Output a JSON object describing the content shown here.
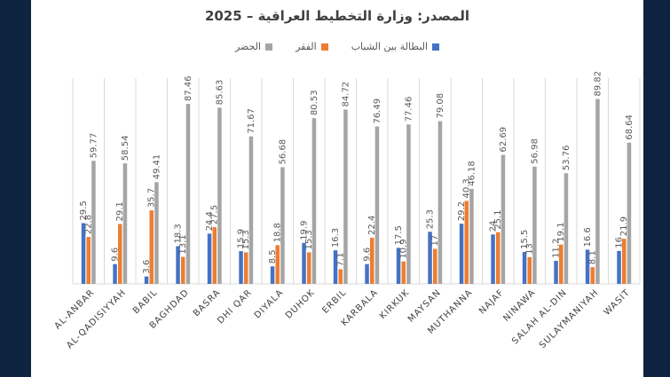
{
  "chart_data": {
    "type": "bar",
    "title": "المصدر: وزارة التخطيط العراقية – 2025",
    "categories": [
      "AL-ANBAR",
      "AL-QADISIYYAH",
      "BABIL",
      "BAGHDAD",
      "BASRA",
      "DHI QAR",
      "DIYALA",
      "DUHOK",
      "ERBIL",
      "KARBALA",
      "KIRKUK",
      "MAYSAN",
      "MUTHANNA",
      "NAJAF",
      "NINAWA",
      "SALAH AL-DIN",
      "SULAYMANIYAH",
      "WASIT"
    ],
    "series": [
      {
        "name": "البطالة بين الشباب",
        "color": "#4472c4",
        "values": [
          29.5,
          9.6,
          3.6,
          18.3,
          24.4,
          15.9,
          8.5,
          19.9,
          16.3,
          9.6,
          17.5,
          25.3,
          29.2,
          24,
          15.5,
          11.2,
          16.6,
          16
        ]
      },
      {
        "name": "الفقر",
        "color": "#ed7d31",
        "values": [
          22.8,
          29.1,
          35.7,
          13.1,
          27.5,
          15.3,
          18.8,
          15.3,
          7.1,
          22.4,
          10.9,
          17,
          40.3,
          25.1,
          13,
          19.1,
          8.1,
          21.9
        ]
      },
      {
        "name": "الحضر",
        "color": "#a5a5a5",
        "values": [
          59.77,
          58.54,
          49.41,
          87.46,
          85.63,
          71.67,
          56.68,
          80.53,
          84.72,
          76.49,
          77.46,
          79.08,
          46.18,
          62.69,
          56.98,
          53.76,
          89.82,
          68.64
        ]
      }
    ],
    "ylim": [
      0,
      100
    ],
    "grid": "vertical",
    "legend_position": "top"
  }
}
